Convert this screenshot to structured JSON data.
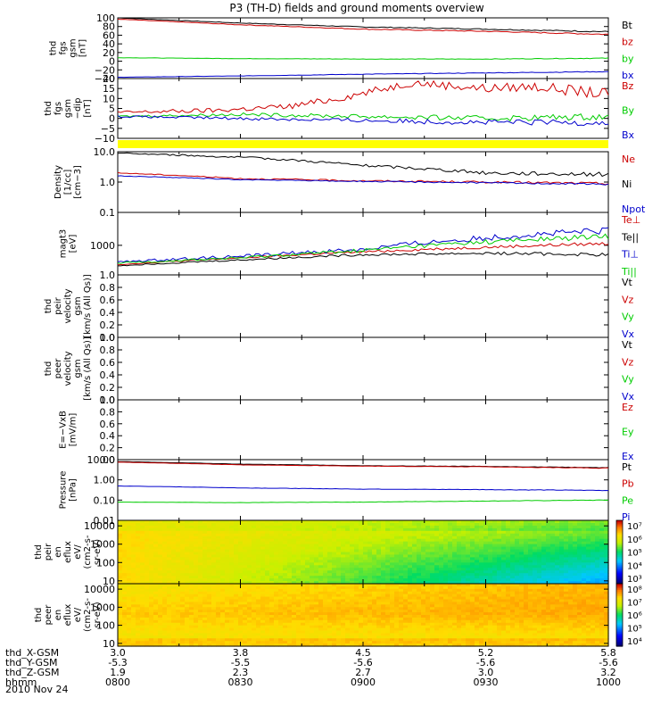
{
  "title": "P3 (TH-D) fields and ground moments overview",
  "date_label": "2010 Nov 24",
  "chart_data": {
    "type": "line",
    "x_ticks": [
      "0800",
      "0830",
      "0900",
      "0930",
      "1000"
    ],
    "ephemeris": [
      {
        "label": "thd_X-GSM",
        "values": [
          "3.0",
          "3.8",
          "4.5",
          "5.2",
          "5.8"
        ]
      },
      {
        "label": "thd_Y-GSM",
        "values": [
          "-5.3",
          "-5.5",
          "-5.6",
          "-5.6",
          "-5.6"
        ]
      },
      {
        "label": "thd_Z-GSM",
        "values": [
          "1.9",
          "2.3",
          "2.7",
          "3.0",
          "3.2"
        ]
      },
      {
        "label": "hhmm",
        "values": [
          "0800",
          "0830",
          "0900",
          "0930",
          "1000"
        ]
      }
    ],
    "panels": [
      {
        "id": "fgs_bt",
        "ylabel": [
          "thd",
          "fgs",
          "gsm",
          "[nT]"
        ],
        "yticks": [
          "100",
          "80",
          "60",
          "40",
          "20",
          "0",
          "−20",
          "−40"
        ],
        "ylim": [
          -40,
          100
        ],
        "series": [
          {
            "name": "Bt",
            "color": "#000000",
            "x": [
              0,
              0.25,
              0.5,
              0.75,
              1
            ],
            "y": [
              100,
              88,
              79,
              74,
              68
            ],
            "noise": 1
          },
          {
            "name": "bz",
            "color": "#cc0000",
            "x": [
              0,
              0.25,
              0.5,
              0.75,
              1
            ],
            "y": [
              97,
              84,
              74,
              69,
              62
            ],
            "noise": 1
          },
          {
            "name": "by",
            "color": "#00cc00",
            "x": [
              0,
              0.25,
              0.5,
              0.75,
              1
            ],
            "y": [
              8,
              6,
              5,
              5,
              7
            ],
            "noise": 0.6
          },
          {
            "name": "bx",
            "color": "#0000cc",
            "x": [
              0,
              0.25,
              0.5,
              0.75,
              1
            ],
            "y": [
              -37,
              -34,
              -30,
              -27,
              -24
            ],
            "noise": 0.6
          }
        ]
      },
      {
        "id": "fgs_dip",
        "ylabel": [
          "thd",
          "fgs",
          "gsm",
          "−dip",
          "[nT]"
        ],
        "yticks": [
          "20",
          "15",
          "10",
          "5",
          "0",
          "−5",
          "−10"
        ],
        "ylim": [
          -10,
          20
        ],
        "series": [
          {
            "name": "Bz",
            "color": "#cc0000",
            "x": [
              0,
              0.2,
              0.35,
              0.45,
              0.6,
              0.75,
              0.85,
              1
            ],
            "y": [
              3,
              4,
              6,
              10,
              18,
              15,
              16,
              12
            ],
            "noise": 2
          },
          {
            "name": "By",
            "color": "#00cc00",
            "x": [
              0,
              0.25,
              0.5,
              0.75,
              1
            ],
            "y": [
              1,
              2,
              1,
              0,
              1
            ],
            "noise": 1.2
          },
          {
            "name": "Bx",
            "color": "#0000cc",
            "x": [
              0,
              0.25,
              0.5,
              0.75,
              1
            ],
            "y": [
              1,
              0,
              -1,
              -2,
              -2
            ],
            "noise": 1.2
          }
        ]
      },
      {
        "id": "density",
        "ylabel": [
          "Density",
          "[1/cc]",
          "[cm−3]"
        ],
        "yticks": [
          "10.0",
          "1.0",
          "0.1"
        ],
        "ylim": [
          0.1,
          10
        ],
        "log": true,
        "series": [
          {
            "name": "Ne",
            "color": "#cc0000",
            "x": [
              0,
              0.25,
              0.5,
              0.75,
              1
            ],
            "y": [
              2.0,
              1.3,
              1.1,
              1.0,
              0.9
            ],
            "noise": 0.03
          },
          {
            "name": "Ni",
            "color": "#000000",
            "x": [
              0,
              0.3,
              0.5,
              0.75,
              1
            ],
            "y": [
              9,
              6,
              3.5,
              2,
              1.8
            ],
            "noise": 0.05
          },
          {
            "name": "Npot",
            "color": "#0000cc",
            "x": [
              0,
              0.25,
              0.5,
              0.75,
              1
            ],
            "y": [
              1.6,
              1.2,
              1.05,
              0.95,
              0.85
            ],
            "noise": 0.02
          }
        ]
      },
      {
        "id": "temperature",
        "ylabel": [
          "magt3",
          "[eV]"
        ],
        "yticks": [
          "1000"
        ],
        "ylim": [
          200,
          6000
        ],
        "log": true,
        "series": [
          {
            "name": "Te⊥",
            "color": "#cc0000",
            "x": [
              0,
              0.25,
              0.5,
              0.75,
              1
            ],
            "y": [
              350,
              500,
              700,
              900,
              1100
            ],
            "noise": 0.03
          },
          {
            "name": "Te||",
            "color": "#000000",
            "x": [
              0,
              0.25,
              0.5,
              0.75,
              1
            ],
            "y": [
              330,
              450,
              600,
              650,
              600
            ],
            "noise": 0.03
          },
          {
            "name": "Ti⊥",
            "color": "#0000cc",
            "x": [
              0,
              0.25,
              0.5,
              0.75,
              1
            ],
            "y": [
              400,
              550,
              800,
              1500,
              2200
            ],
            "noise": 0.06
          },
          {
            "name": "Ti||",
            "color": "#00cc00",
            "x": [
              0,
              0.25,
              0.5,
              0.75,
              1
            ],
            "y": [
              380,
              500,
              750,
              1200,
              1600
            ],
            "noise": 0.05
          }
        ]
      },
      {
        "id": "peir_vel",
        "ylabel": [
          "thd",
          "peir",
          "velocity",
          "gsm",
          "[km/s (All Qs)]"
        ],
        "yticks": [
          "1.0",
          "0.8",
          "0.6",
          "0.4",
          "0.2",
          "0.0"
        ],
        "ylim": [
          0,
          1
        ],
        "series": [
          {
            "name": "Vt",
            "color": "#000000",
            "x": [],
            "y": []
          },
          {
            "name": "Vz",
            "color": "#cc0000",
            "x": [],
            "y": []
          },
          {
            "name": "Vy",
            "color": "#00cc00",
            "x": [],
            "y": []
          },
          {
            "name": "Vx",
            "color": "#0000cc",
            "x": [],
            "y": []
          }
        ]
      },
      {
        "id": "peer_vel",
        "ylabel": [
          "thd",
          "peer",
          "velocity",
          "gsm",
          "[km/s (All Qs)]"
        ],
        "yticks": [
          "1.0",
          "0.8",
          "0.6",
          "0.4",
          "0.2",
          "0.0"
        ],
        "ylim": [
          0,
          1
        ],
        "series": [
          {
            "name": "Vt",
            "color": "#000000",
            "x": [],
            "y": []
          },
          {
            "name": "Vz",
            "color": "#cc0000",
            "x": [],
            "y": []
          },
          {
            "name": "Vy",
            "color": "#00cc00",
            "x": [],
            "y": []
          },
          {
            "name": "Vx",
            "color": "#0000cc",
            "x": [],
            "y": []
          }
        ]
      },
      {
        "id": "efield",
        "ylabel": [
          "E=−VxB",
          "[mV/m]"
        ],
        "yticks": [
          "1.0",
          "0.8",
          "0.6",
          "0.4",
          "0.2",
          "0.0"
        ],
        "ylim": [
          0,
          1
        ],
        "series": [
          {
            "name": "Ez",
            "color": "#cc0000",
            "x": [],
            "y": []
          },
          {
            "name": "Ey",
            "color": "#00cc00",
            "x": [],
            "y": []
          },
          {
            "name": "Ex",
            "color": "#0000cc",
            "x": [],
            "y": []
          }
        ]
      },
      {
        "id": "pressure",
        "ylabel": [
          "Pressure",
          "[nPa]"
        ],
        "yticks": [
          "10.00",
          "1.00",
          "0.10",
          "0.01"
        ],
        "ylim": [
          0.01,
          10
        ],
        "log": true,
        "series": [
          {
            "name": "Pt",
            "color": "#000000",
            "x": [
              0,
              0.25,
              0.5,
              0.75,
              1
            ],
            "y": [
              8,
              6,
              5,
              4.6,
              4
            ],
            "noise": 0.01
          },
          {
            "name": "Pb",
            "color": "#cc0000",
            "x": [
              0,
              0.25,
              0.5,
              0.75,
              1
            ],
            "y": [
              7.5,
              5.5,
              4.8,
              4.4,
              3.8
            ],
            "noise": 0.01
          },
          {
            "name": "Pe",
            "color": "#00cc00",
            "x": [
              0,
              0.25,
              0.5,
              0.75,
              1
            ],
            "y": [
              0.08,
              0.075,
              0.08,
              0.09,
              0.1
            ],
            "noise": 0.01
          },
          {
            "name": "Pi",
            "color": "#0000cc",
            "x": [
              0,
              0.25,
              0.5,
              0.75,
              1
            ],
            "y": [
              0.5,
              0.4,
              0.35,
              0.33,
              0.3
            ],
            "noise": 0.01
          }
        ]
      },
      {
        "id": "peir_spec",
        "type": "heatmap",
        "ylabel": [
          "thd",
          "peir",
          "en",
          "eflux",
          "eV/",
          "(cm2-s-",
          "sr-eV)"
        ],
        "yticks": [
          "10000",
          "1000",
          "100",
          "10"
        ],
        "ylim": [
          7,
          20000
        ],
        "colorbar": {
          "ticks": [
            "10⁷",
            "10⁶",
            "10⁵",
            "10⁴",
            "10³"
          ],
          "range": [
            3,
            7.3
          ]
        }
      },
      {
        "id": "peer_spec",
        "type": "heatmap",
        "ylabel": [
          "thd",
          "peer",
          "en",
          "eflux",
          "eV/",
          "(cm2-s-",
          "sr-eV)"
        ],
        "yticks": [
          "10000",
          "1000",
          "100",
          "10"
        ],
        "ylim": [
          7,
          20000
        ],
        "colorbar": {
          "ticks": [
            "10⁸",
            "10⁷",
            "10⁶",
            "10⁵",
            "10⁴"
          ],
          "range": [
            3.5,
            8.1
          ]
        }
      }
    ]
  }
}
